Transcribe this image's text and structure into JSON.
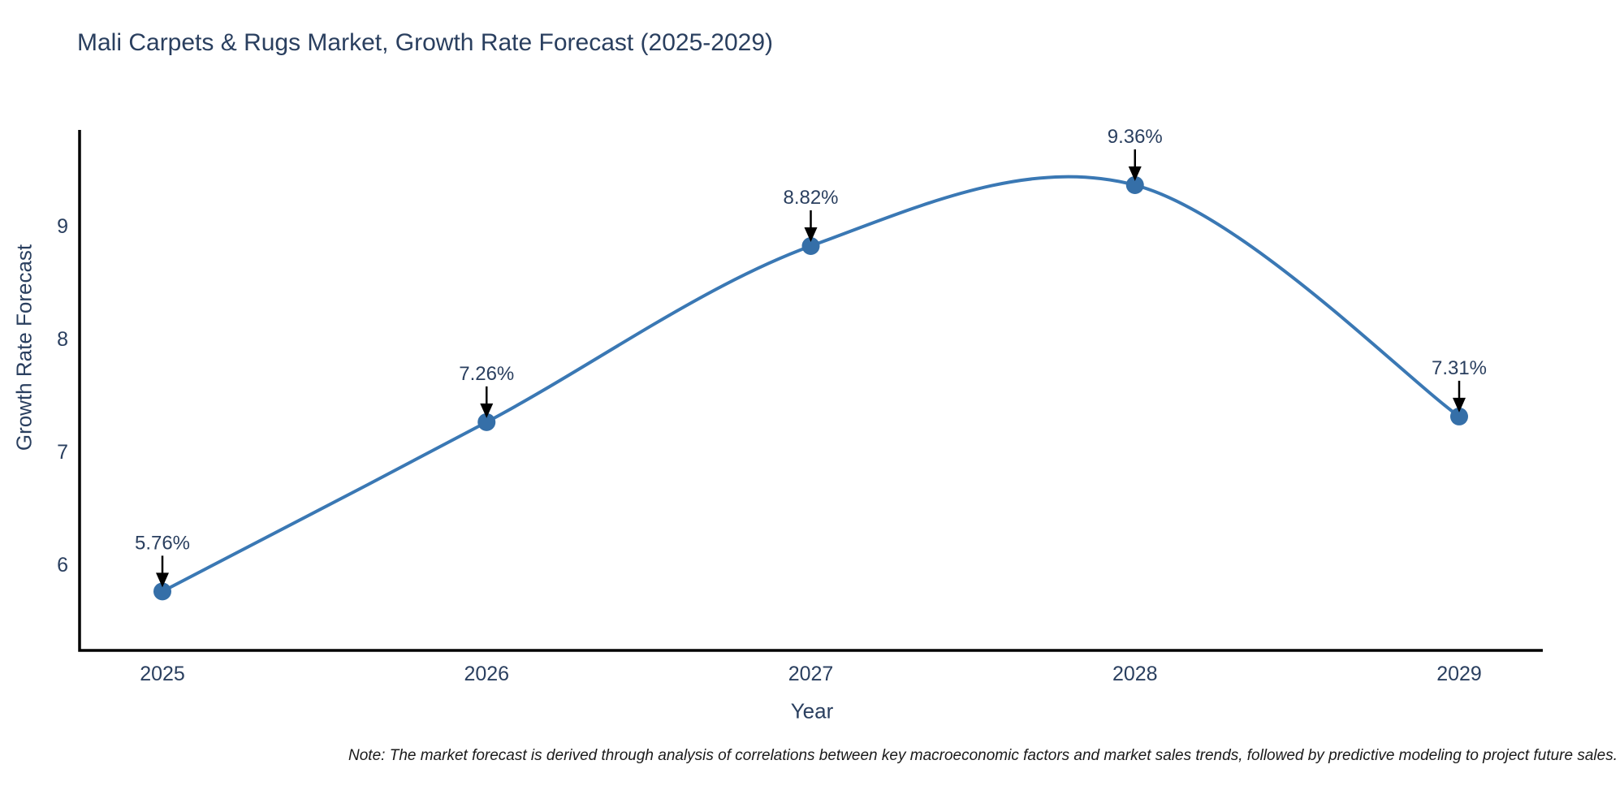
{
  "note": "Note: The market forecast is derived through analysis of correlations between key macroeconomic factors and market sales trends, followed by predictive modeling to project future sales.",
  "colors": {
    "title_text": "#2a3f5f",
    "axis_text": "#2a3f5f",
    "axis_line": "#000000",
    "line": "#3a78b4",
    "marker": "#356fa8",
    "annotation_text": "#2a3f5f",
    "annotation_arrow": "#000000",
    "background": "#ffffff"
  },
  "chart_data": {
    "type": "line",
    "line_shape": "spline",
    "title": "Mali Carpets & Rugs Market, Growth Rate Forecast (2025-2029)",
    "xlabel": "Year",
    "ylabel": "Growth Rate Forecast",
    "x": [
      2025,
      2026,
      2027,
      2028,
      2029
    ],
    "values": [
      5.76,
      7.26,
      8.82,
      9.36,
      7.31
    ],
    "point_labels": [
      "5.76%",
      "7.26%",
      "8.82%",
      "9.36%",
      "7.31%"
    ],
    "yticks": [
      6,
      7,
      8,
      9
    ],
    "ylim": [
      5.24,
      9.85
    ],
    "grid": false,
    "legend_position": "none"
  }
}
